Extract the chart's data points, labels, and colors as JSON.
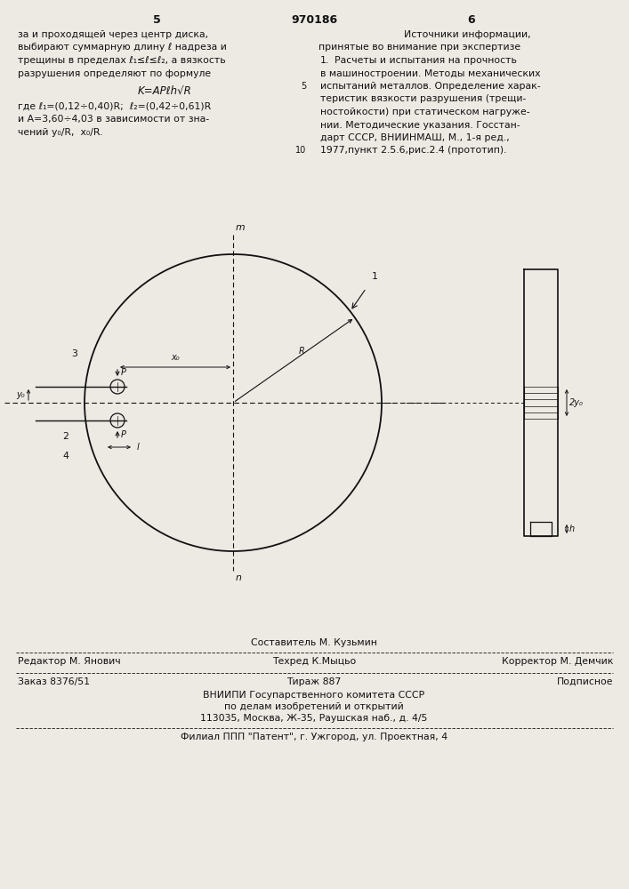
{
  "page_number_left": "5",
  "page_number_center": "970186",
  "page_number_right": "6",
  "left_col": [
    "за и проходящей через центр диска,",
    "выбирают суммарную длину ℓ надреза и",
    "трещины в пределах ℓ₁≤ℓ≤ℓ₂, а вязкость",
    "разрушения определяют по формуле"
  ],
  "formula": "K=APℓh√R",
  "formula_note": [
    "где ℓ₁=(0,12÷0,40)R;  ℓ₂=(0,42÷0,61)R",
    "и A=3,60÷4,03 в зависимости от зна-",
    "чений y₀/R,  x₀/R."
  ],
  "right_col_title": "Источники информации,",
  "right_col_subtitle": "принятые во внимание при экспертизе",
  "right_col_body": [
    [
      "1.",
      "Расчеты и испытания на прочность"
    ],
    [
      "",
      "в машиностроении. Методы механических"
    ],
    [
      "5",
      "испытаний металлов. Определение харак-"
    ],
    [
      "",
      "теристик вязкости разрушения (трещи-"
    ],
    [
      "",
      "ностойкости) при статическом нагруже-"
    ],
    [
      "",
      "нии. Методические указания. Госстан-"
    ],
    [
      "",
      "дарт СССР, ВНИИНМАШ, М., 1-я ред.,"
    ],
    [
      "10",
      "1977,пункт 2.5.6,рис.2.4 (прототип)."
    ]
  ],
  "footer_composer": "Составитель М. Кузьмин",
  "footer_editor": "Редактор М. Янович",
  "footer_tech": "Техред К.Мыцьо",
  "footer_corrector": "Корректор М. Демчик",
  "footer_order": "Заказ 8376/51",
  "footer_tirazh": "Тираж 887",
  "footer_podpisnoe": "Подписное",
  "footer_vnipi": "ВНИИПИ Госупарственного комитета СССР",
  "footer_po_delam": "по делам изобретений и открытий",
  "footer_address": "113035, Москва, Ж-35, Раушская наб., д. 4/5",
  "footer_filial": "Филиал ППП \"Патент\", г. Ужгород, ул. Проектная, 4",
  "bg_color": "#ede9e3",
  "text_color": "#111111",
  "line_color": "#111111"
}
